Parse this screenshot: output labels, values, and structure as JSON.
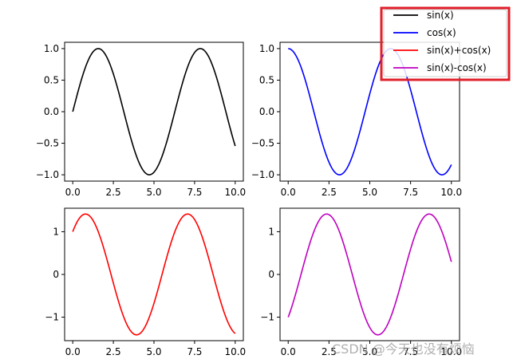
{
  "watermark": "CSDN @今天也没有烦恼",
  "chart_data": [
    {
      "type": "line",
      "series": [
        {
          "name": "sin(x)",
          "color": "#000000",
          "expr": "sin",
          "x_range": [
            0,
            10
          ]
        }
      ],
      "xlim": [
        -0.5,
        10.5
      ],
      "ylim": [
        -1.1,
        1.1
      ],
      "xticks": [
        0,
        2.5,
        5,
        7.5,
        10
      ],
      "xtick_labels": [
        "0.0",
        "2.5",
        "5.0",
        "7.5",
        "10.0"
      ],
      "yticks": [
        -1,
        -0.5,
        0,
        0.5,
        1
      ],
      "ytick_labels": [
        "−1.0",
        "−0.5",
        "0.0",
        "0.5",
        "1.0"
      ],
      "grid": false
    },
    {
      "type": "line",
      "series": [
        {
          "name": "cos(x)",
          "color": "#0000ff",
          "expr": "cos",
          "x_range": [
            0,
            10
          ]
        }
      ],
      "xlim": [
        -0.5,
        10.5
      ],
      "ylim": [
        -1.1,
        1.1
      ],
      "xticks": [
        0,
        2.5,
        5,
        7.5,
        10
      ],
      "xtick_labels": [
        "0.0",
        "2.5",
        "5.0",
        "7.5",
        "10.0"
      ],
      "yticks": [
        -1,
        -0.5,
        0,
        0.5,
        1
      ],
      "ytick_labels": [
        "−1.0",
        "−0.5",
        "0.0",
        "0.5",
        "1.0"
      ],
      "grid": false
    },
    {
      "type": "line",
      "series": [
        {
          "name": "sin(x)+cos(x)",
          "color": "#ff0000",
          "expr": "sin+cos",
          "x_range": [
            0,
            10
          ]
        }
      ],
      "xlim": [
        -0.5,
        10.5
      ],
      "ylim": [
        -1.55,
        1.55
      ],
      "xticks": [
        0,
        2.5,
        5,
        7.5,
        10
      ],
      "xtick_labels": [
        "0.0",
        "2.5",
        "5.0",
        "7.5",
        "10.0"
      ],
      "yticks": [
        -1,
        0,
        1
      ],
      "ytick_labels": [
        "−1",
        "0",
        "1"
      ],
      "grid": false
    },
    {
      "type": "line",
      "series": [
        {
          "name": "sin(x)-cos(x)",
          "color": "#bf00bf",
          "expr": "sin-cos",
          "x_range": [
            0,
            10
          ]
        }
      ],
      "xlim": [
        -0.5,
        10.5
      ],
      "ylim": [
        -1.55,
        1.55
      ],
      "xticks": [
        0,
        2.5,
        5,
        7.5,
        10
      ],
      "xtick_labels": [
        "0.0",
        "2.5",
        "5.0",
        "7.5",
        "10.0"
      ],
      "yticks": [
        -1,
        0,
        1
      ],
      "ytick_labels": [
        "−1",
        "0",
        "1"
      ],
      "grid": false
    }
  ],
  "legend": {
    "placement": "top-right",
    "highlight_color": "#e0202a",
    "entries": [
      {
        "label": "sin(x)",
        "color": "#000000"
      },
      {
        "label": "cos(x)",
        "color": "#0000ff"
      },
      {
        "label": "sin(x)+cos(x)",
        "color": "#ff0000"
      },
      {
        "label": "sin(x)-cos(x)",
        "color": "#bf00bf"
      }
    ]
  }
}
